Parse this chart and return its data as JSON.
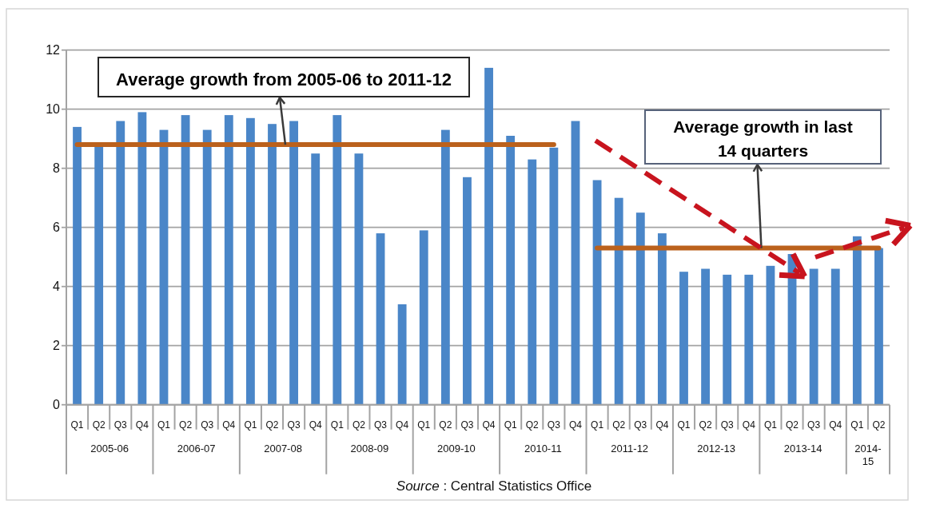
{
  "chart_data": {
    "type": "bar",
    "categories": [
      "Q1",
      "Q2",
      "Q3",
      "Q4",
      "Q1",
      "Q2",
      "Q3",
      "Q4",
      "Q1",
      "Q2",
      "Q3",
      "Q4",
      "Q1",
      "Q2",
      "Q3",
      "Q4",
      "Q1",
      "Q2",
      "Q3",
      "Q4",
      "Q1",
      "Q2",
      "Q3",
      "Q4",
      "Q1",
      "Q2",
      "Q3",
      "Q4",
      "Q1",
      "Q2",
      "Q3",
      "Q4",
      "Q1",
      "Q2",
      "Q3",
      "Q4",
      "Q1",
      "Q2"
    ],
    "series": [
      {
        "type": "bar",
        "color": "#4a86c8",
        "values": [
          9.4,
          8.8,
          9.6,
          9.9,
          9.3,
          9.8,
          9.3,
          9.8,
          9.7,
          9.5,
          9.6,
          8.5,
          9.8,
          8.5,
          5.8,
          3.4,
          5.9,
          9.3,
          7.7,
          11.4,
          9.1,
          8.3,
          8.7,
          9.6,
          7.6,
          7.0,
          6.5,
          5.8,
          4.5,
          4.6,
          4.4,
          4.4,
          4.7,
          5.1,
          4.6,
          4.6,
          5.7,
          5.3
        ]
      },
      {
        "type": "line",
        "color": "#bb611c",
        "values": [
          8.8,
          8.8,
          8.8,
          8.8,
          8.8,
          8.8,
          8.8,
          8.8,
          8.8,
          8.8,
          8.8,
          8.8,
          8.8,
          8.8,
          8.8,
          8.8,
          8.8,
          8.8,
          8.8,
          8.8,
          8.8,
          8.8,
          8.8,
          null,
          null,
          null,
          null,
          null,
          null,
          null,
          null,
          null,
          null,
          null,
          null,
          null,
          null,
          null
        ]
      },
      {
        "type": "line",
        "color": "#bb611c",
        "values": [
          null,
          null,
          null,
          null,
          null,
          null,
          null,
          null,
          null,
          null,
          null,
          null,
          null,
          null,
          null,
          null,
          null,
          null,
          null,
          null,
          null,
          null,
          null,
          null,
          5.3,
          5.3,
          5.3,
          5.3,
          5.3,
          5.3,
          5.3,
          5.3,
          5.3,
          5.3,
          5.3,
          5.3,
          5.3,
          5.3
        ]
      }
    ],
    "ylim": [
      0,
      12
    ],
    "yticks": [
      0,
      2,
      4,
      6,
      8,
      10,
      12
    ],
    "grid": "y",
    "annotations": [
      {
        "text": "Average growth from 2005-06 to 2011-12",
        "y": 8.8
      },
      {
        "text": "Average growth in last 14 quarters",
        "y": 5.3
      },
      "2005-06",
      "2006-07",
      "2007-08",
      "2008-09",
      "2009-10",
      "2010-11",
      "2011-12",
      "2012-13",
      "2013-14",
      "2014-15",
      "Source : Central Statistics Office"
    ]
  }
}
